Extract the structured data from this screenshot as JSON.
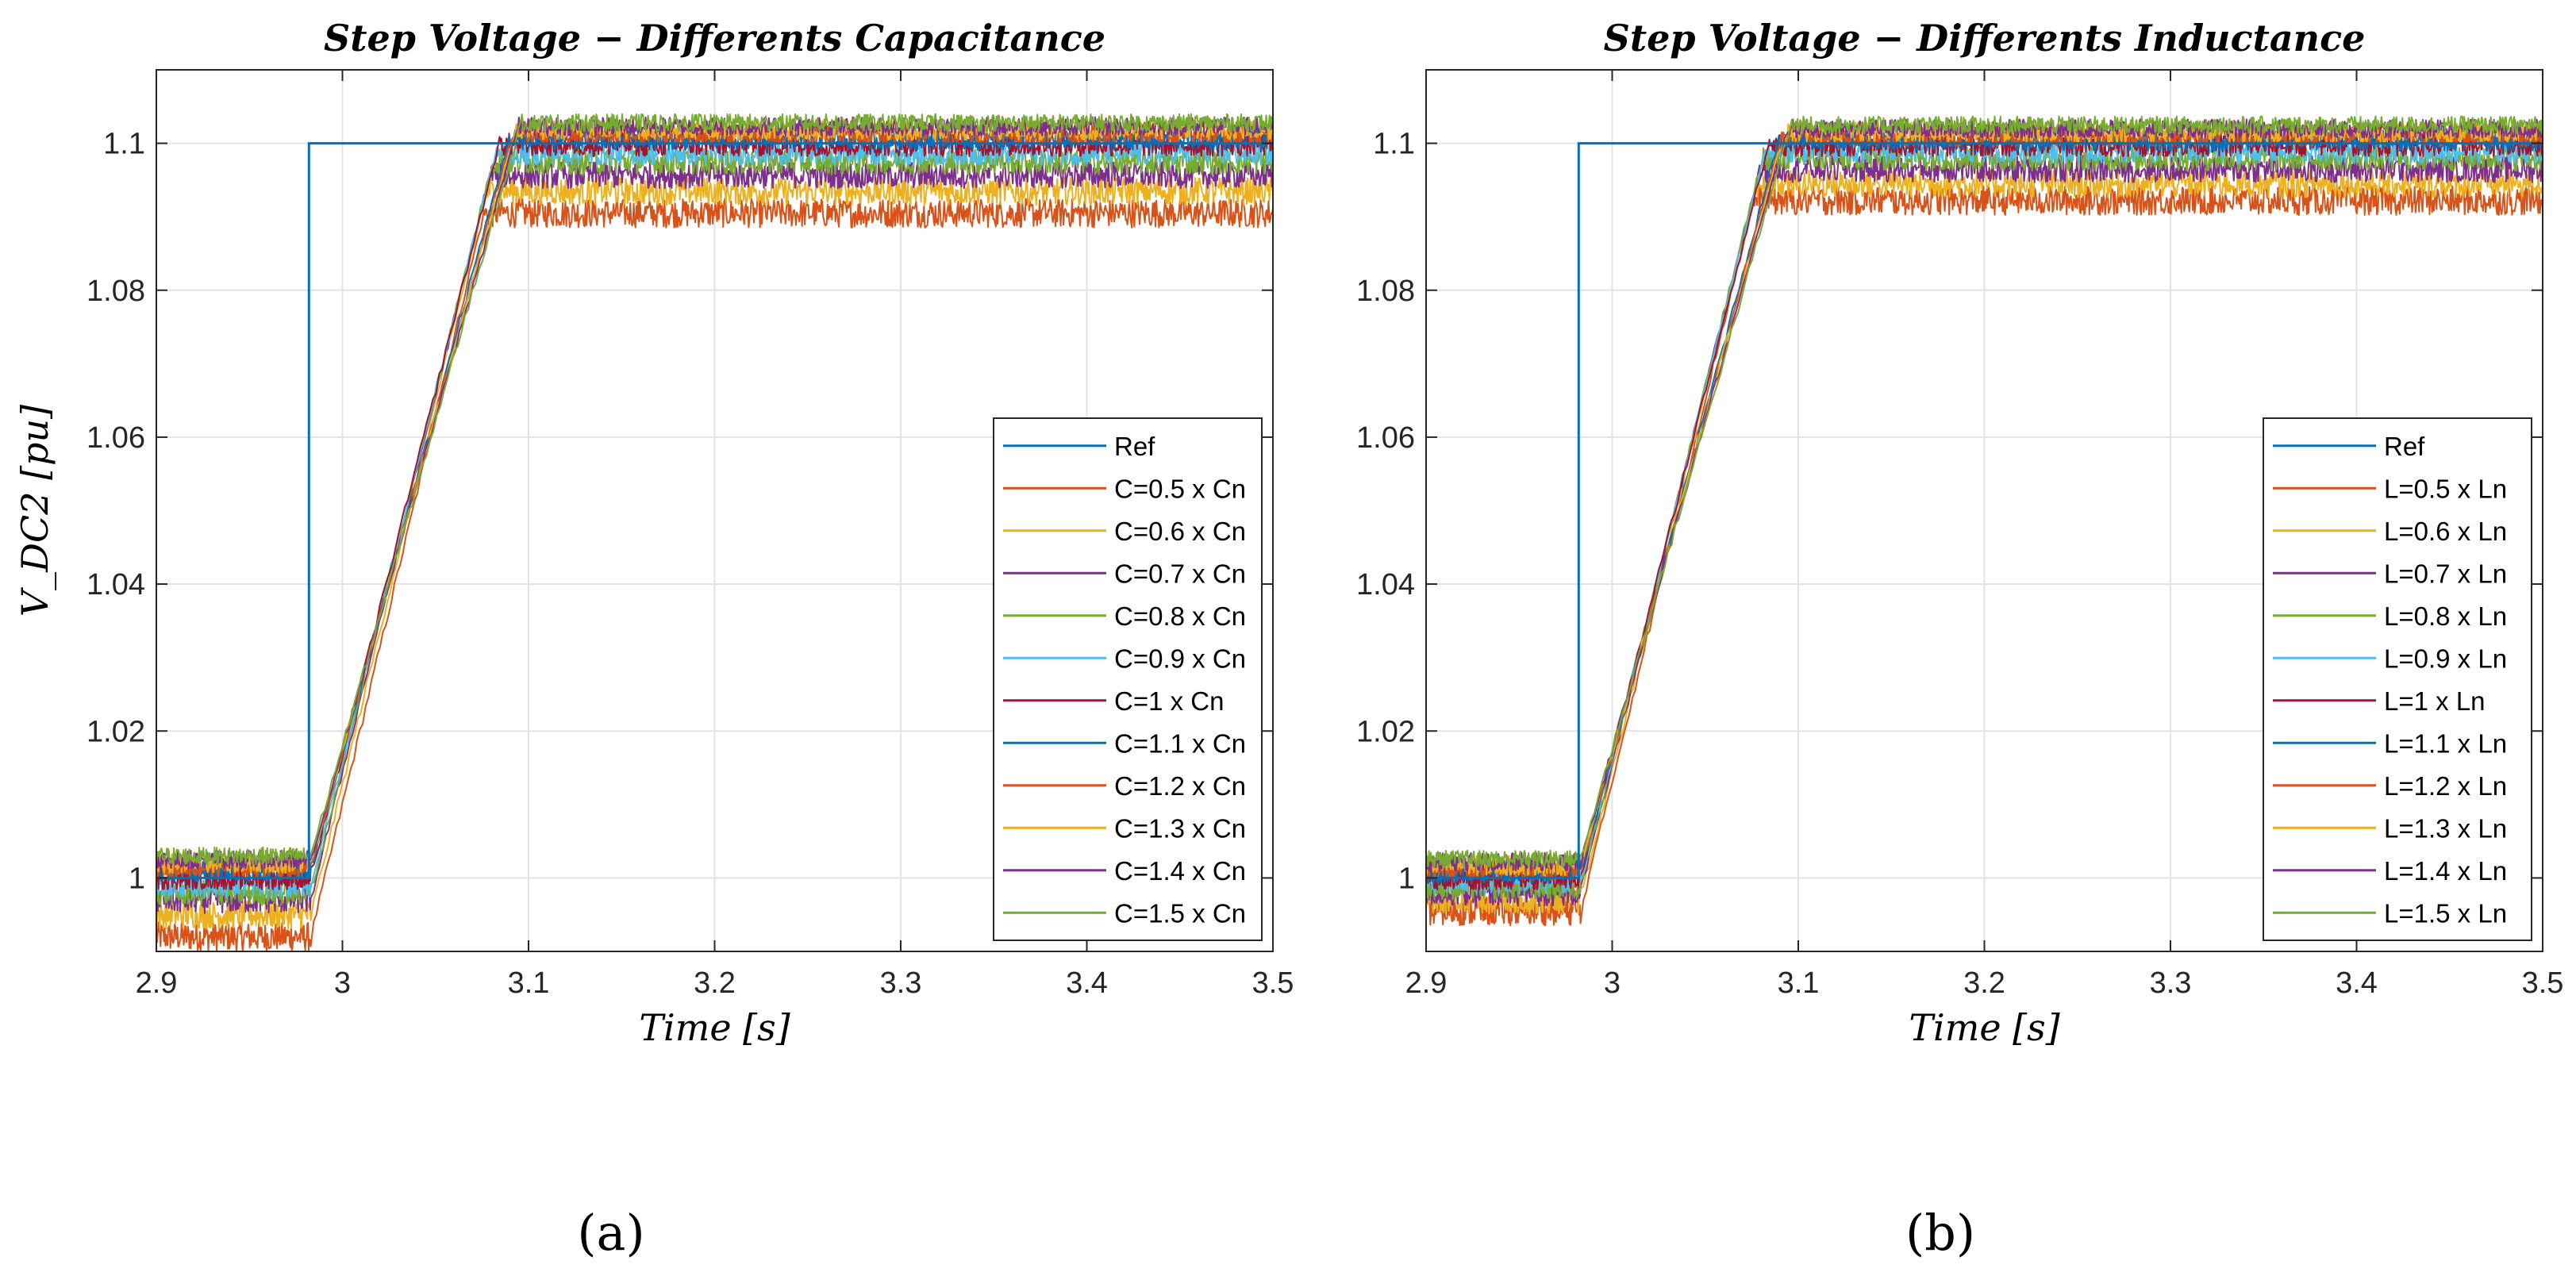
{
  "chart_data": [
    {
      "type": "line",
      "title": "Step Voltage  − Differents Capacitance",
      "xlabel": "Time [s]",
      "ylabel": "V_DC2 [pu]",
      "xlim": [
        2.9,
        3.5
      ],
      "ylim": [
        0.99,
        1.11
      ],
      "xticks": [
        "2.9",
        "3",
        "3.1",
        "3.2",
        "3.3",
        "3.4",
        "3.5"
      ],
      "yticks": [
        "1",
        "1.02",
        "1.04",
        "1.06",
        "1.08",
        "1.1"
      ],
      "grid": true,
      "legend_position": "bottom-right",
      "panel_label": "(a)",
      "reference": {
        "name": "Ref",
        "initial": 1.0,
        "final": 1.1,
        "step_time": 2.982
      },
      "series": [
        {
          "name": "C=0.5 x Cn",
          "initial": 0.992,
          "final": 1.0905,
          "color": "#D95319"
        },
        {
          "name": "C=0.6 x Cn",
          "initial": 0.995,
          "final": 1.0935,
          "color": "#EDB120"
        },
        {
          "name": "C=0.7 x Cn",
          "initial": 0.997,
          "final": 1.0957,
          "color": "#7E2F8E"
        },
        {
          "name": "C=0.8 x Cn",
          "initial": 0.998,
          "final": 1.0975,
          "color": "#77AC30"
        },
        {
          "name": "C=0.9 x Cn",
          "initial": 0.999,
          "final": 1.0987,
          "color": "#4DBEEE"
        },
        {
          "name": "C=1 x Cn",
          "initial": 1.0,
          "final": 1.0998,
          "color": "#A2142F"
        },
        {
          "name": "C=1.1 x Cn",
          "initial": 1.001,
          "final": 1.1006,
          "color": "#0072BD"
        },
        {
          "name": "C=1.2 x Cn",
          "initial": 1.0015,
          "final": 1.1012,
          "color": "#D95319"
        },
        {
          "name": "C=1.3 x Cn",
          "initial": 1.002,
          "final": 1.1018,
          "color": "#EDB120"
        },
        {
          "name": "C=1.4 x Cn",
          "initial": 1.0025,
          "final": 1.1023,
          "color": "#7E2F8E"
        },
        {
          "name": "C=1.5 x Cn",
          "initial": 1.003,
          "final": 1.1028,
          "color": "#77AC30"
        }
      ]
    },
    {
      "type": "line",
      "title": "Step Voltage  − Differents Inductance",
      "xlabel": "Time [s]",
      "ylabel": "",
      "xlim": [
        2.9,
        3.5
      ],
      "ylim": [
        0.99,
        1.11
      ],
      "xticks": [
        "2.9",
        "3",
        "3.1",
        "3.2",
        "3.3",
        "3.4",
        "3.5"
      ],
      "yticks": [
        "1",
        "1.02",
        "1.04",
        "1.06",
        "1.08",
        "1.1"
      ],
      "grid": true,
      "legend_position": "bottom-right",
      "panel_label": "(b)",
      "reference": {
        "name": "Ref",
        "initial": 1.0,
        "final": 1.1,
        "step_time": 2.982
      },
      "series": [
        {
          "name": "L=0.5 x Ln",
          "initial": 0.9955,
          "final": 1.0922,
          "color": "#D95319"
        },
        {
          "name": "L=0.6 x Ln",
          "initial": 0.997,
          "final": 1.0945,
          "color": "#EDB120"
        },
        {
          "name": "L=0.7 x Ln",
          "initial": 0.998,
          "final": 1.0965,
          "color": "#7E2F8E"
        },
        {
          "name": "L=0.8 x Ln",
          "initial": 0.9988,
          "final": 1.098,
          "color": "#77AC30"
        },
        {
          "name": "L=0.9 x Ln",
          "initial": 0.9995,
          "final": 1.099,
          "color": "#4DBEEE"
        },
        {
          "name": "L=1 x Ln",
          "initial": 1.0,
          "final": 1.0998,
          "color": "#A2142F"
        },
        {
          "name": "L=1.1 x Ln",
          "initial": 1.0007,
          "final": 1.1005,
          "color": "#0072BD"
        },
        {
          "name": "L=1.2 x Ln",
          "initial": 1.0012,
          "final": 1.101,
          "color": "#D95319"
        },
        {
          "name": "L=1.3 x Ln",
          "initial": 1.0017,
          "final": 1.1015,
          "color": "#EDB120"
        },
        {
          "name": "L=1.4 x Ln",
          "initial": 1.0022,
          "final": 1.102,
          "color": "#7E2F8E"
        },
        {
          "name": "L=1.5 x Ln",
          "initial": 1.0026,
          "final": 1.1025,
          "color": "#77AC30"
        }
      ]
    }
  ]
}
